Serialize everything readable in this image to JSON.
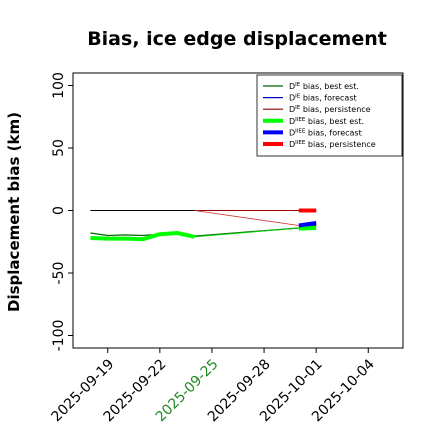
{
  "chart_data": {
    "type": "line",
    "title": "Bias, ice edge displacement",
    "xlabel": "",
    "ylabel": "Displacement bias (km)",
    "ylim": [
      -110,
      110
    ],
    "xlim": [
      "2025-09-17",
      "2025-10-06"
    ],
    "x_ticks": [
      "2025-09-19",
      "2025-09-22",
      "2025-09-25",
      "2025-09-28",
      "2025-10-01",
      "2025-10-04"
    ],
    "x_tick_colors": [
      "#000000",
      "#000000",
      "#228b22",
      "#000000",
      "#000000",
      "#000000"
    ],
    "y_ticks": [
      100,
      50,
      0,
      -50,
      -100
    ],
    "grid": false,
    "legend_position": "top-right",
    "legend_entries": [
      {
        "label_main": "D",
        "label_sup": "IE",
        "label_rest": " bias, best est.",
        "color": "#006400",
        "width": 1.2
      },
      {
        "label_main": "D",
        "label_sup": "IE",
        "label_rest": " bias, forecast",
        "color": "#0000cd",
        "width": 1.2
      },
      {
        "label_main": "D",
        "label_sup": "IE",
        "label_rest": " bias, persistence",
        "color": "#8b0000",
        "width": 1.2
      },
      {
        "label_main": "D",
        "label_sup": "IIEE",
        "label_rest": " bias, best est.",
        "color": "#00ff00",
        "width": 4
      },
      {
        "label_main": "D",
        "label_sup": "IIEE",
        "label_rest": " bias, forecast",
        "color": "#0000ff",
        "width": 4
      },
      {
        "label_main": "D",
        "label_sup": "IIEE",
        "label_rest": " bias, persistence",
        "color": "#ff0000",
        "width": 4
      }
    ],
    "series": [
      {
        "key": "ie_best",
        "color": "#000000",
        "width": 1,
        "x": [
          "2025-09-18",
          "2025-09-19",
          "2025-09-20",
          "2025-09-21",
          "2025-09-22",
          "2025-09-23",
          "2025-09-24",
          "2025-09-30",
          "2025-10-01"
        ],
        "y": [
          0,
          0,
          0,
          0,
          0,
          0,
          0,
          0,
          0
        ]
      },
      {
        "key": "ie_persistence_red",
        "color": "#cc0000",
        "width": 0.8,
        "x": [
          "2025-09-24",
          "2025-09-30",
          "2025-10-01"
        ],
        "y": [
          0,
          0,
          0
        ]
      },
      {
        "key": "ie_forecast_green",
        "color": "#006400",
        "width": 1.2,
        "x": [
          "2025-09-18",
          "2025-09-19",
          "2025-09-20",
          "2025-09-21",
          "2025-09-22",
          "2025-09-23",
          "2025-09-24",
          "2025-09-30",
          "2025-10-01"
        ],
        "y": [
          -18,
          -20,
          -19.5,
          -20,
          -19,
          -17.5,
          -20.5,
          -14,
          -12
        ]
      },
      {
        "key": "iiee_best",
        "color": "#00ff00",
        "width": 4,
        "x": [
          "2025-09-18",
          "2025-09-19",
          "2025-09-20",
          "2025-09-21",
          "2025-09-22",
          "2025-09-23",
          "2025-09-24"
        ],
        "y": [
          -22,
          -22.5,
          -22.5,
          -23,
          -19,
          -18,
          -21
        ]
      },
      {
        "key": "iiee_best_thin",
        "color": "#00cc00",
        "width": 1,
        "x": [
          "2025-09-24",
          "2025-09-30"
        ],
        "y": [
          -21,
          -14
        ]
      },
      {
        "key": "iiee_best_tail",
        "color": "#00ff00",
        "width": 4,
        "x": [
          "2025-09-30",
          "2025-10-01"
        ],
        "y": [
          -14.5,
          -14
        ]
      },
      {
        "key": "iiee_persistence_thin",
        "color": "#cc3333",
        "width": 0.8,
        "x": [
          "2025-09-24",
          "2025-09-30"
        ],
        "y": [
          0,
          -12
        ]
      },
      {
        "key": "iiee_forecast",
        "color": "#0000ff",
        "width": 4,
        "x": [
          "2025-09-30",
          "2025-10-01"
        ],
        "y": [
          -12,
          -10
        ]
      },
      {
        "key": "iiee_persistence",
        "color": "#ff0000",
        "width": 4,
        "x": [
          "2025-09-30",
          "2025-10-01"
        ],
        "y": [
          0,
          0
        ]
      }
    ]
  }
}
